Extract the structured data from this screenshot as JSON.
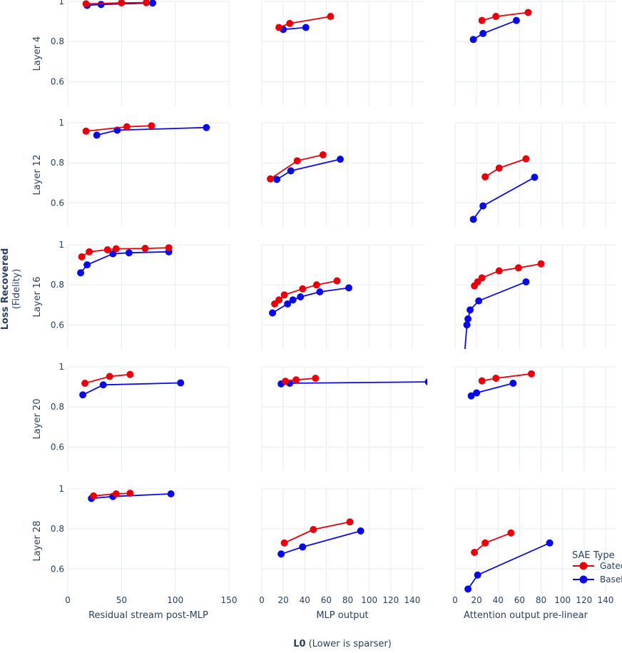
{
  "chart_data": {
    "type": "line",
    "ylabel": "Loss Recovered",
    "ylabel_sub": "(Fidelity)",
    "xlabel": "L0",
    "xlabel_sub": "(Lower is sparser)",
    "columns": [
      "Residual stream post-MLP",
      "MLP output",
      "Attention output pre-linear"
    ],
    "rows": [
      "Layer 4",
      "Layer 12",
      "Layer 16",
      "Layer 20",
      "Layer 28"
    ],
    "x_ticks": [
      [
        "0",
        "50",
        "100",
        "150"
      ],
      [
        "0",
        "20",
        "40",
        "60",
        "80",
        "100",
        "120",
        "140"
      ],
      [
        "0",
        "20",
        "40",
        "60",
        "80",
        "100",
        "120",
        "140"
      ]
    ],
    "x_tick_values": [
      [
        0,
        50,
        100,
        150
      ],
      [
        0,
        20,
        40,
        60,
        80,
        100,
        120,
        140
      ],
      [
        0,
        20,
        40,
        60,
        80,
        100,
        120,
        140
      ]
    ],
    "xlims": [
      [
        0,
        150
      ],
      [
        0,
        150
      ],
      [
        0,
        150
      ]
    ],
    "ylim": [
      0.48,
      1.0
    ],
    "y_ticks": [
      "0.6",
      "0.8",
      "1"
    ],
    "y_tick_values": [
      0.6,
      0.8,
      1.0
    ],
    "legend": {
      "title": "SAE Type",
      "position": "bottom-right",
      "entries": [
        "Gated",
        "Baseline"
      ]
    },
    "colors": {
      "Gated": "#e8000b",
      "Baseline": "#0a0ae6"
    },
    "panels": [
      [
        {
          "Gated": [
            [
              17,
              0.988
            ],
            [
              50,
              0.993
            ],
            [
              73,
              0.994
            ]
          ],
          "Baseline": [
            [
              18,
              0.98
            ],
            [
              31,
              0.985
            ],
            [
              79,
              0.992
            ]
          ]
        },
        {
          "Gated": [
            [
              16,
              0.87
            ],
            [
              26,
              0.89
            ],
            [
              64,
              0.925
            ]
          ],
          "Baseline": [
            [
              20,
              0.86
            ],
            [
              41,
              0.87
            ]
          ]
        },
        {
          "Gated": [
            [
              25,
              0.905
            ],
            [
              38,
              0.925
            ],
            [
              68,
              0.945
            ]
          ],
          "Baseline": [
            [
              17,
              0.81
            ],
            [
              26,
              0.84
            ],
            [
              57,
              0.905
            ]
          ]
        }
      ],
      [
        {
          "Gated": [
            [
              17,
              0.958
            ],
            [
              55,
              0.98
            ],
            [
              78,
              0.985
            ]
          ],
          "Baseline": [
            [
              27,
              0.938
            ],
            [
              46,
              0.963
            ],
            [
              129,
              0.976
            ]
          ]
        },
        {
          "Gated": [
            [
              8,
              0.72
            ],
            [
              33,
              0.81
            ],
            [
              57,
              0.84
            ]
          ],
          "Baseline": [
            [
              14,
              0.717
            ],
            [
              27,
              0.76
            ],
            [
              73,
              0.818
            ]
          ]
        },
        {
          "Gated": [
            [
              28,
              0.73
            ],
            [
              41,
              0.774
            ],
            [
              66,
              0.82
            ]
          ],
          "Baseline": [
            [
              17,
              0.518
            ],
            [
              26,
              0.585
            ],
            [
              74,
              0.728
            ]
          ]
        }
      ],
      [
        {
          "Gated": [
            [
              13,
              0.94
            ],
            [
              20,
              0.965
            ],
            [
              37,
              0.975
            ],
            [
              45,
              0.98
            ],
            [
              72,
              0.982
            ],
            [
              94,
              0.985
            ]
          ],
          "Baseline": [
            [
              12,
              0.86
            ],
            [
              18,
              0.9
            ],
            [
              42,
              0.955
            ],
            [
              57,
              0.96
            ],
            [
              94,
              0.965
            ]
          ]
        },
        {
          "Gated": [
            [
              12,
              0.705
            ],
            [
              16,
              0.725
            ],
            [
              21,
              0.75
            ],
            [
              38,
              0.78
            ],
            [
              51,
              0.8
            ],
            [
              70,
              0.82
            ]
          ],
          "Baseline": [
            [
              10,
              0.66
            ],
            [
              24,
              0.705
            ],
            [
              29,
              0.725
            ],
            [
              36,
              0.74
            ],
            [
              54,
              0.765
            ],
            [
              81,
              0.785
            ]
          ]
        },
        {
          "Gated": [
            [
              18,
              0.795
            ],
            [
              21,
              0.815
            ],
            [
              25,
              0.835
            ],
            [
              41,
              0.87
            ],
            [
              59,
              0.885
            ],
            [
              80,
              0.905
            ]
          ],
          "Baseline": [
            [
              9,
              0.47
            ],
            [
              11,
              0.6
            ],
            [
              12,
              0.63
            ],
            [
              14,
              0.675
            ],
            [
              22,
              0.72
            ],
            [
              66,
              0.815
            ]
          ]
        }
      ],
      [
        {
          "Gated": [
            [
              16,
              0.918
            ],
            [
              39,
              0.952
            ],
            [
              58,
              0.962
            ]
          ],
          "Baseline": [
            [
              14,
              0.86
            ],
            [
              33,
              0.91
            ],
            [
              105,
              0.92
            ]
          ]
        },
        {
          "Gated": [
            [
              22,
              0.928
            ],
            [
              32,
              0.935
            ],
            [
              50,
              0.943
            ]
          ],
          "Baseline": [
            [
              18,
              0.915
            ],
            [
              26,
              0.918
            ],
            [
              155,
              0.925
            ]
          ]
        },
        {
          "Gated": [
            [
              25,
              0.93
            ],
            [
              38,
              0.943
            ],
            [
              71,
              0.965
            ]
          ],
          "Baseline": [
            [
              15,
              0.855
            ],
            [
              20,
              0.87
            ],
            [
              54,
              0.918
            ]
          ]
        }
      ],
      [
        {
          "Gated": [
            [
              24,
              0.965
            ],
            [
              45,
              0.975
            ],
            [
              58,
              0.978
            ]
          ],
          "Baseline": [
            [
              22,
              0.952
            ],
            [
              42,
              0.962
            ],
            [
              96,
              0.975
            ]
          ]
        },
        {
          "Gated": [
            [
              21,
              0.73
            ],
            [
              48,
              0.797
            ],
            [
              82,
              0.835
            ]
          ],
          "Baseline": [
            [
              18,
              0.675
            ],
            [
              38,
              0.71
            ],
            [
              92,
              0.79
            ]
          ]
        },
        {
          "Gated": [
            [
              18,
              0.683
            ],
            [
              28,
              0.73
            ],
            [
              52,
              0.78
            ]
          ],
          "Baseline": [
            [
              12,
              0.5
            ],
            [
              21,
              0.57
            ],
            [
              88,
              0.73
            ]
          ]
        }
      ]
    ]
  }
}
